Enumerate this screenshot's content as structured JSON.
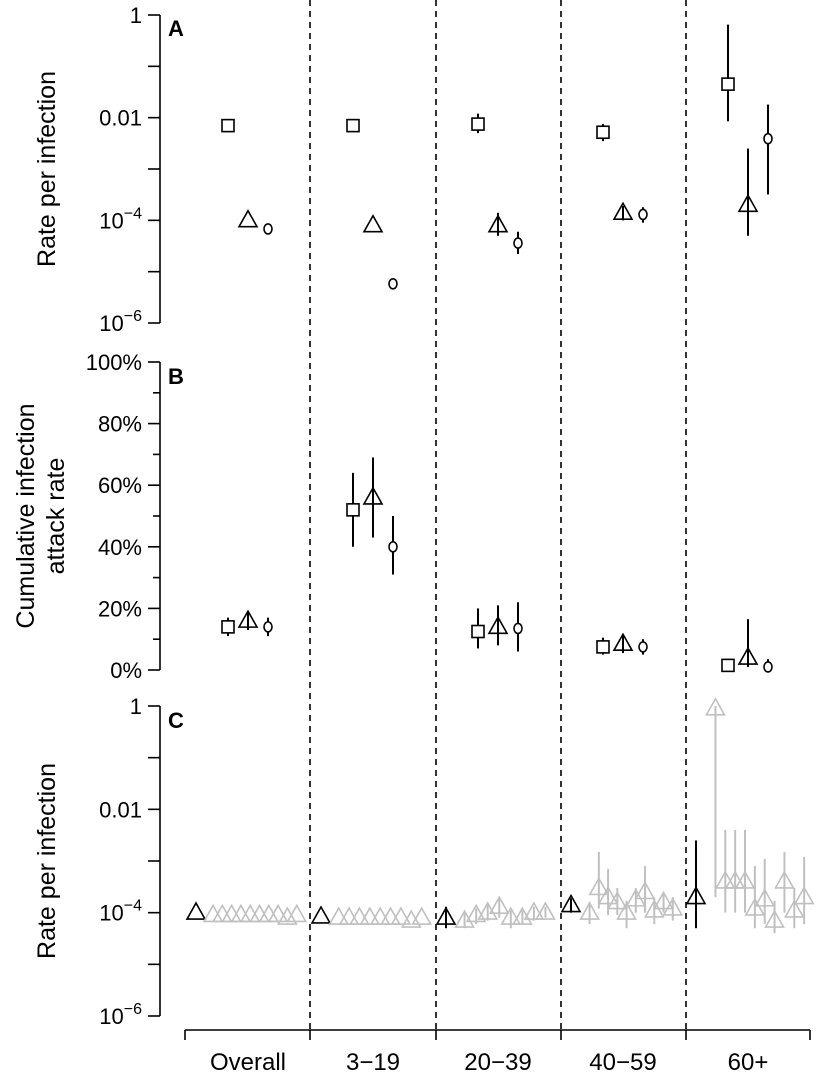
{
  "chart_data": {
    "type": "scatter",
    "x_categories": [
      "Overall",
      "3−19",
      "20−39",
      "40−59",
      "60+"
    ],
    "panels": [
      {
        "label": "A",
        "ylabel": "Rate per infection",
        "yscale": "log",
        "ylim": [
          1e-06,
          1
        ],
        "yticks": [
          {
            "value": 1,
            "base": "1",
            "exp": ""
          },
          {
            "value": 0.01,
            "base": "0.01",
            "exp": ""
          },
          {
            "value": 0.0001,
            "base": "10",
            "exp": "−4"
          },
          {
            "value": 1e-06,
            "base": "10",
            "exp": "−6"
          }
        ],
        "series": [
          {
            "marker": "square",
            "color": "#000000",
            "points": [
              {
                "group": 0,
                "y": 0.007,
                "lo": null,
                "hi": null
              },
              {
                "group": 1,
                "y": 0.007,
                "lo": null,
                "hi": null
              },
              {
                "group": 2,
                "y": 0.0075,
                "lo": 0.005,
                "hi": 0.012
              },
              {
                "group": 3,
                "y": 0.0052,
                "lo": 0.0035,
                "hi": 0.0075
              },
              {
                "group": 4,
                "y": 0.045,
                "lo": 0.0085,
                "hi": 0.65
              }
            ]
          },
          {
            "marker": "triangle",
            "color": "#000000",
            "points": [
              {
                "group": 0,
                "y": 0.0001,
                "lo": null,
                "hi": null
              },
              {
                "group": 1,
                "y": 8e-05,
                "lo": null,
                "hi": null
              },
              {
                "group": 2,
                "y": 8e-05,
                "lo": 5e-05,
                "hi": 0.00014
              },
              {
                "group": 3,
                "y": 0.00014,
                "lo": 0.0001,
                "hi": 0.00019
              },
              {
                "group": 4,
                "y": 0.0002,
                "lo": 5e-05,
                "hi": 0.0025
              }
            ]
          },
          {
            "marker": "circle",
            "color": "#000000",
            "points": [
              {
                "group": 0,
                "y": 6.8e-05,
                "lo": null,
                "hi": null
              },
              {
                "group": 1,
                "y": 5.8e-06,
                "lo": null,
                "hi": null
              },
              {
                "group": 2,
                "y": 3.6e-05,
                "lo": 2.2e-05,
                "hi": 6e-05
              },
              {
                "group": 3,
                "y": 0.00013,
                "lo": 9e-05,
                "hi": 0.00018
              },
              {
                "group": 4,
                "y": 0.0039,
                "lo": 0.00032,
                "hi": 0.018
              }
            ]
          }
        ]
      },
      {
        "label": "B",
        "ylabel_lines": [
          "Cumulative infection",
          "attack rate"
        ],
        "yscale": "linear",
        "ylim": [
          0,
          100
        ],
        "yticks": [
          {
            "value": 100,
            "label": "100%"
          },
          {
            "value": 80,
            "label": "80%"
          },
          {
            "value": 60,
            "label": "60%"
          },
          {
            "value": 40,
            "label": "40%"
          },
          {
            "value": 20,
            "label": "20%"
          },
          {
            "value": 0,
            "label": "0%"
          }
        ],
        "series": [
          {
            "marker": "square",
            "color": "#000000",
            "points": [
              {
                "group": 0,
                "y": 14,
                "lo": 11,
                "hi": 17
              },
              {
                "group": 1,
                "y": 52,
                "lo": 40,
                "hi": 64
              },
              {
                "group": 2,
                "y": 12.5,
                "lo": 7,
                "hi": 20
              },
              {
                "group": 3,
                "y": 7.5,
                "lo": 5,
                "hi": 10.5
              },
              {
                "group": 4,
                "y": 1.5,
                "lo": 0.7,
                "hi": 3
              }
            ]
          },
          {
            "marker": "triangle",
            "color": "#000000",
            "points": [
              {
                "group": 0,
                "y": 16,
                "lo": 13,
                "hi": 19
              },
              {
                "group": 1,
                "y": 56,
                "lo": 43,
                "hi": 69
              },
              {
                "group": 2,
                "y": 14,
                "lo": 8,
                "hi": 21
              },
              {
                "group": 3,
                "y": 8.5,
                "lo": 5.5,
                "hi": 11.5
              },
              {
                "group": 4,
                "y": 4,
                "lo": 1,
                "hi": 16.5
              }
            ]
          },
          {
            "marker": "circle",
            "color": "#000000",
            "points": [
              {
                "group": 0,
                "y": 14,
                "lo": 11,
                "hi": 17
              },
              {
                "group": 1,
                "y": 40,
                "lo": 31,
                "hi": 50
              },
              {
                "group": 2,
                "y": 13.5,
                "lo": 6,
                "hi": 22
              },
              {
                "group": 3,
                "y": 7.5,
                "lo": 5,
                "hi": 10
              },
              {
                "group": 4,
                "y": 1,
                "lo": 0.3,
                "hi": 3.5
              }
            ]
          }
        ]
      },
      {
        "label": "C",
        "ylabel": "Rate per infection",
        "yscale": "log",
        "ylim": [
          1e-06,
          1
        ],
        "yticks": [
          {
            "value": 1,
            "base": "1",
            "exp": ""
          },
          {
            "value": 0.01,
            "base": "0.01",
            "exp": ""
          },
          {
            "value": 0.0001,
            "base": "10",
            "exp": "−4"
          },
          {
            "value": 1e-06,
            "base": "10",
            "exp": "−6"
          }
        ],
        "series": [
          {
            "marker": "triangle",
            "color": "#000000",
            "points": [
              {
                "group": 0,
                "y": 0.0001,
                "lo": null,
                "hi": null
              },
              {
                "group": 1,
                "y": 8.4e-05,
                "lo": null,
                "hi": null
              },
              {
                "group": 2,
                "y": 8e-05,
                "lo": 5e-05,
                "hi": 0.00013
              },
              {
                "group": 3,
                "y": 0.00014,
                "lo": 0.0001,
                "hi": 0.00019
              },
              {
                "group": 4,
                "y": 0.0002,
                "lo": 5e-05,
                "hi": 0.0025
              }
            ]
          },
          {
            "marker": "triangle",
            "color": "#c0c0c0",
            "points": [
              {
                "group": 0,
                "y": 9e-05
              },
              {
                "group": 0,
                "y": 9e-05
              },
              {
                "group": 0,
                "y": 9e-05
              },
              {
                "group": 0,
                "y": 9e-05
              },
              {
                "group": 0,
                "y": 9e-05
              },
              {
                "group": 0,
                "y": 9e-05
              },
              {
                "group": 0,
                "y": 9e-05
              },
              {
                "group": 0,
                "y": 9e-05
              },
              {
                "group": 0,
                "y": 8e-05
              },
              {
                "group": 0,
                "y": 9e-05
              },
              {
                "group": 1,
                "y": 8e-05
              },
              {
                "group": 1,
                "y": 8e-05
              },
              {
                "group": 1,
                "y": 8e-05
              },
              {
                "group": 1,
                "y": 8e-05
              },
              {
                "group": 1,
                "y": 8e-05
              },
              {
                "group": 1,
                "y": 8e-05
              },
              {
                "group": 1,
                "y": 8e-05
              },
              {
                "group": 1,
                "y": 7e-05
              },
              {
                "group": 1,
                "y": 8e-05
              },
              {
                "group": 2,
                "y": 7e-05,
                "lo": 5e-05,
                "hi": 0.0001
              },
              {
                "group": 2,
                "y": 9e-05,
                "lo": 6e-05,
                "hi": 0.00012
              },
              {
                "group": 2,
                "y": 0.0001,
                "lo": 7e-05,
                "hi": 0.00014
              },
              {
                "group": 2,
                "y": 0.00013,
                "lo": 8e-05,
                "hi": 0.0002
              },
              {
                "group": 2,
                "y": 8e-05,
                "lo": 5e-05,
                "hi": 0.00011
              },
              {
                "group": 2,
                "y": 8e-05,
                "lo": 6e-05,
                "hi": 0.00011
              },
              {
                "group": 2,
                "y": 0.0001,
                "lo": 7e-05,
                "hi": 0.00013
              },
              {
                "group": 2,
                "y": 0.0001,
                "lo": 8e-05,
                "hi": 0.00013
              },
              {
                "group": 3,
                "y": 0.0001,
                "lo": 6e-05,
                "hi": 0.00016
              },
              {
                "group": 3,
                "y": 0.0003,
                "lo": 0.00012,
                "hi": 0.0015
              },
              {
                "group": 3,
                "y": 0.0002,
                "lo": 9e-05,
                "hi": 0.0007
              },
              {
                "group": 3,
                "y": 0.00016,
                "lo": 9e-05,
                "hi": 0.0003
              },
              {
                "group": 3,
                "y": 0.0001,
                "lo": 5e-05,
                "hi": 0.00017
              },
              {
                "group": 3,
                "y": 0.00018,
                "lo": 0.0001,
                "hi": 0.0003
              },
              {
                "group": 3,
                "y": 0.00025,
                "lo": 0.0001,
                "hi": 0.0008
              },
              {
                "group": 3,
                "y": 0.00011,
                "lo": 6e-05,
                "hi": 0.00019
              },
              {
                "group": 3,
                "y": 0.00016,
                "lo": 0.0001,
                "hi": 0.00025
              },
              {
                "group": 3,
                "y": 0.00012,
                "lo": 7e-05,
                "hi": 0.0002
              },
              {
                "group": 4,
                "y": 0.9,
                "lo": 0.0002,
                "hi": 1
              },
              {
                "group": 4,
                "y": 0.0004,
                "lo": 0.0001,
                "hi": 0.004
              },
              {
                "group": 4,
                "y": 0.0004,
                "lo": 0.0001,
                "hi": 0.004
              },
              {
                "group": 4,
                "y": 0.0004,
                "lo": 0.0001,
                "hi": 0.004
              },
              {
                "group": 4,
                "y": 0.00012,
                "lo": 5e-05,
                "hi": 0.0008
              },
              {
                "group": 4,
                "y": 0.00018,
                "lo": 6e-05,
                "hi": 0.0011
              },
              {
                "group": 4,
                "y": 7e-05,
                "lo": 4e-05,
                "hi": 0.00017
              },
              {
                "group": 4,
                "y": 0.0004,
                "lo": 0.0001,
                "hi": 0.0015
              },
              {
                "group": 4,
                "y": 0.00011,
                "lo": 5e-05,
                "hi": 0.0003
              },
              {
                "group": 4,
                "y": 0.0002,
                "lo": 6e-05,
                "hi": 0.0012
              }
            ]
          }
        ]
      }
    ]
  }
}
